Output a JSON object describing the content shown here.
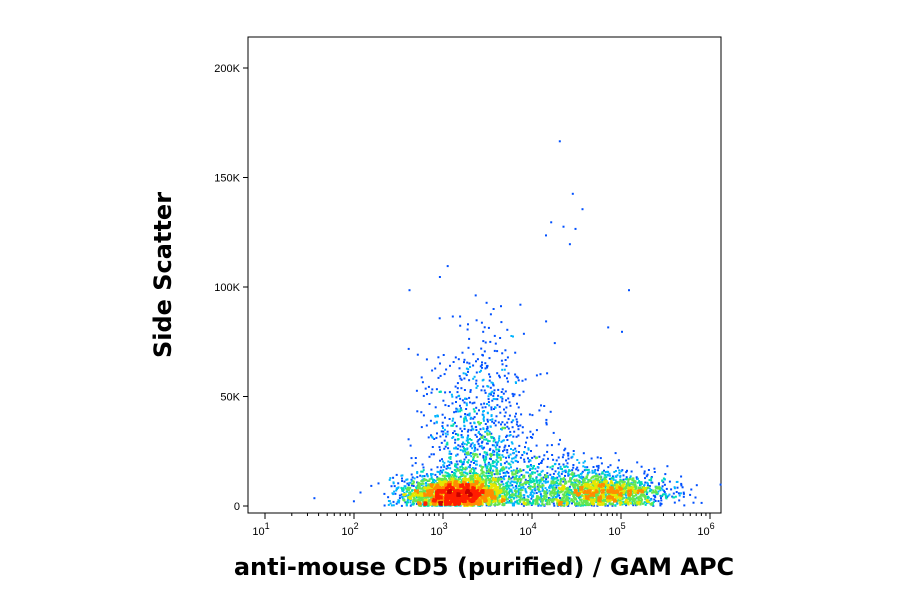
{
  "chart_data": {
    "type": "scatter",
    "subtype": "flow-cytometry-density-dot-plot",
    "xlabel": "anti-mouse CD5 (purified) / GAM APC",
    "ylabel": "Side Scatter",
    "x_scale": "log",
    "xlim": [
      10,
      1000000
    ],
    "ylim": [
      0,
      220000
    ],
    "x_ticks": [
      {
        "value": 10,
        "base": "10",
        "exp": "1"
      },
      {
        "value": 100,
        "base": "10",
        "exp": "2"
      },
      {
        "value": 1000,
        "base": "10",
        "exp": "3"
      },
      {
        "value": 10000,
        "base": "10",
        "exp": "4"
      },
      {
        "value": 100000,
        "base": "10",
        "exp": "5"
      },
      {
        "value": 1000000,
        "base": "10",
        "exp": "6"
      }
    ],
    "y_ticks": [
      {
        "value": 0,
        "label": "0"
      },
      {
        "value": 50000,
        "label": "50K"
      },
      {
        "value": 100000,
        "label": "100K"
      },
      {
        "value": 150000,
        "label": "150K"
      },
      {
        "value": 200000,
        "label": "200K"
      }
    ],
    "grid": false,
    "legend": "none",
    "color_scale": [
      "#0000c8",
      "#0050ff",
      "#00b4ff",
      "#00dcb4",
      "#64e650",
      "#e6e600",
      "#ff8c00",
      "#ff1e00",
      "#c80000"
    ],
    "populations": [
      {
        "description": "CD5-negative cluster",
        "x_center": 1300,
        "x_spread_decades": 0.28,
        "y_center": 6000,
        "y_spread": 4000,
        "peak_density": "high",
        "n_points": 2600
      },
      {
        "description": "CD5-negative upper tail",
        "x_center": 2500,
        "x_spread_decades": 0.3,
        "y_center": 30000,
        "y_spread": 25000,
        "peak_density": "low",
        "n_points": 1200
      },
      {
        "description": "CD5-positive cluster",
        "x_center": 70000,
        "x_spread_decades": 0.33,
        "y_center": 7000,
        "y_spread": 4000,
        "peak_density": "medium",
        "n_points": 1500
      },
      {
        "description": "bridge between clusters",
        "x_center": 12000,
        "x_spread_decades": 0.45,
        "y_center": 9000,
        "y_spread": 7000,
        "peak_density": "low",
        "n_points": 900
      }
    ],
    "outliers": [
      {
        "x": 20000,
        "y": 167000
      },
      {
        "x": 28000,
        "y": 143000
      },
      {
        "x": 36000,
        "y": 136000
      },
      {
        "x": 16000,
        "y": 130000
      },
      {
        "x": 22000,
        "y": 128000
      },
      {
        "x": 30000,
        "y": 127000
      },
      {
        "x": 14000,
        "y": 124000
      },
      {
        "x": 26000,
        "y": 120000
      },
      {
        "x": 120000,
        "y": 99000
      },
      {
        "x": 410,
        "y": 99000
      },
      {
        "x": 900,
        "y": 105000
      },
      {
        "x": 1100,
        "y": 110000
      },
      {
        "x": 100000,
        "y": 80000
      },
      {
        "x": 70000,
        "y": 82000
      },
      {
        "x": 600000,
        "y": 8000
      },
      {
        "x": 35,
        "y": 4000
      }
    ]
  }
}
